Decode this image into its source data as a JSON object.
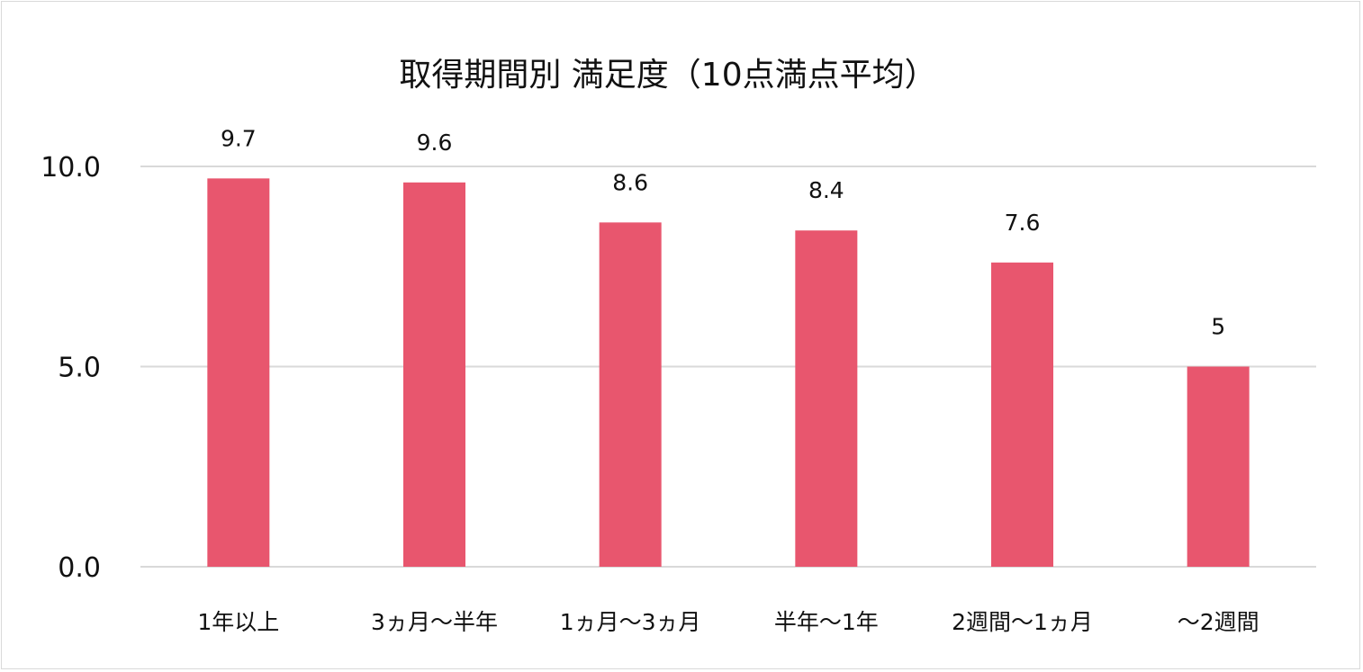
{
  "chart_data": {
    "type": "bar",
    "title": "取得期間別 満足度（10点満点平均）",
    "categories": [
      "1年以上",
      "3ヵ月〜半年",
      "1ヵ月〜3ヵ月",
      "半年〜1年",
      "2週間〜1ヵ月",
      "〜2週間"
    ],
    "values": [
      9.7,
      9.6,
      8.6,
      8.4,
      7.6,
      5
    ],
    "data_labels": [
      "9.7",
      "9.6",
      "8.6",
      "8.4",
      "7.6",
      "5"
    ],
    "ylim": [
      0,
      10
    ],
    "yticks": [
      "0.0",
      "5.0",
      "10.0"
    ],
    "xlabel": "",
    "ylabel": "",
    "grid": true,
    "legend": "none",
    "bar_color": "#e8566e",
    "grid_color": "#d9d9d9"
  }
}
